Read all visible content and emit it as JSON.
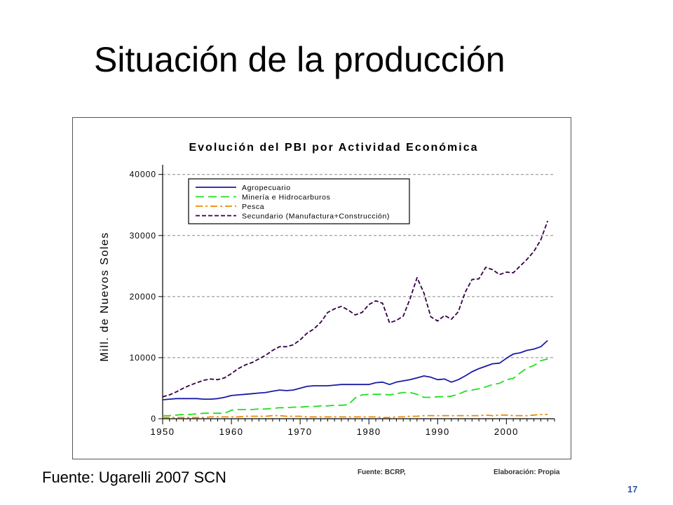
{
  "slide": {
    "title": "Situación de la producción",
    "source": "Fuente: Ugarelli 2007 SCN",
    "fig_source": "Fuente: BCRP,",
    "fig_credit": "Elaboración: Propia",
    "page_number": "17"
  },
  "chart_data": {
    "type": "line",
    "title": "Evolución del PBI por Actividad Económica",
    "xlabel": "",
    "ylabel": "Mill. de Nuevos Soles",
    "xlim": [
      1950,
      2007
    ],
    "ylim": [
      0,
      41000
    ],
    "x_ticks": [
      1950,
      1960,
      1970,
      1980,
      1990,
      2000
    ],
    "y_ticks": [
      0,
      10000,
      20000,
      30000,
      40000
    ],
    "grid": "horizontal dashed",
    "legend_position": "top-left",
    "x": [
      1950,
      1951,
      1952,
      1953,
      1954,
      1955,
      1956,
      1957,
      1958,
      1959,
      1960,
      1961,
      1962,
      1963,
      1964,
      1965,
      1966,
      1967,
      1968,
      1969,
      1970,
      1971,
      1972,
      1973,
      1974,
      1975,
      1976,
      1977,
      1978,
      1979,
      1980,
      1981,
      1982,
      1983,
      1984,
      1985,
      1986,
      1987,
      1988,
      1989,
      1990,
      1991,
      1992,
      1993,
      1994,
      1995,
      1996,
      1997,
      1998,
      1999,
      2000,
      2001,
      2002,
      2003,
      2004,
      2005,
      2006
    ],
    "series": [
      {
        "name": "Agropecuario",
        "color": "#1a1aa6",
        "dash": "solid",
        "values": [
          3100,
          3200,
          3300,
          3300,
          3300,
          3300,
          3200,
          3200,
          3300,
          3500,
          3800,
          3900,
          4000,
          4100,
          4200,
          4300,
          4500,
          4700,
          4600,
          4700,
          5000,
          5300,
          5400,
          5400,
          5400,
          5500,
          5600,
          5600,
          5600,
          5600,
          5600,
          5900,
          6000,
          5600,
          6000,
          6200,
          6400,
          6700,
          7000,
          6800,
          6400,
          6500,
          6000,
          6400,
          7000,
          7700,
          8200,
          8600,
          9000,
          9100,
          9900,
          10600,
          10800,
          11200,
          11400,
          11800,
          12800
        ]
      },
      {
        "name": "Minería e Hidrocarburos",
        "color": "#22dd22",
        "dash": "long",
        "values": [
          500,
          500,
          600,
          700,
          700,
          800,
          900,
          900,
          900,
          900,
          1400,
          1500,
          1500,
          1500,
          1600,
          1600,
          1700,
          1800,
          1800,
          1900,
          1900,
          2000,
          2000,
          2100,
          2100,
          2200,
          2200,
          2300,
          3400,
          3900,
          4000,
          4000,
          4000,
          3900,
          4100,
          4300,
          4300,
          4000,
          3500,
          3500,
          3600,
          3600,
          3700,
          4000,
          4500,
          4700,
          4900,
          5200,
          5600,
          5800,
          6400,
          6600,
          7500,
          8300,
          8700,
          9500,
          9800
        ]
      },
      {
        "name": "Pesca",
        "color": "#ee8800",
        "dash": "dashdot",
        "values": [
          200,
          200,
          200,
          200,
          200,
          200,
          200,
          300,
          300,
          300,
          300,
          300,
          400,
          400,
          400,
          400,
          500,
          500,
          400,
          400,
          400,
          300,
          300,
          300,
          300,
          300,
          300,
          300,
          300,
          300,
          300,
          300,
          200,
          200,
          300,
          300,
          400,
          400,
          500,
          500,
          500,
          500,
          500,
          500,
          500,
          500,
          500,
          600,
          500,
          600,
          600,
          500,
          500,
          500,
          600,
          700,
          700
        ]
      },
      {
        "name": "Secundario (Manufactura+Construcción)",
        "color": "#330044",
        "dash": "short",
        "values": [
          3600,
          3900,
          4400,
          5000,
          5500,
          5900,
          6300,
          6500,
          6400,
          6700,
          7400,
          8200,
          8800,
          9200,
          9800,
          10400,
          11200,
          11800,
          11800,
          12100,
          12900,
          14000,
          14700,
          15800,
          17400,
          18000,
          18400,
          17800,
          17000,
          17400,
          18700,
          19300,
          18900,
          15700,
          16100,
          16800,
          19700,
          23100,
          20600,
          16700,
          16000,
          16900,
          16300,
          17500,
          20700,
          22800,
          22900,
          24800,
          24400,
          23600,
          24000,
          23900,
          25000,
          26100,
          27400,
          29300,
          32400
        ]
      }
    ]
  }
}
